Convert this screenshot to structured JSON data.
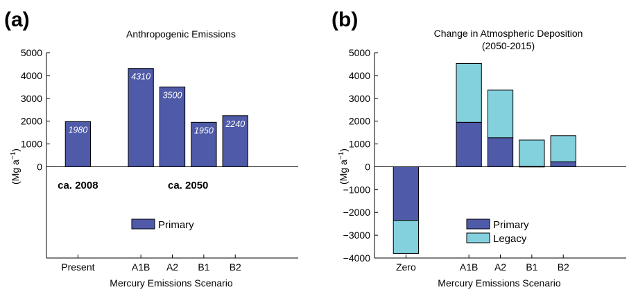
{
  "colors": {
    "primary": "#4f5aa8",
    "legacy": "#84d1de",
    "axis": "#000000"
  },
  "chart_data": [
    {
      "panel_label": "(a)",
      "type": "bar",
      "title": "Anthropogenic Emissions",
      "subtitle": "",
      "xlabel": "Mercury Emissions Scenario",
      "ylabel": "(Mg a",
      "ylabel_sup": "−1",
      "ylabel_close": ")",
      "ylim": [
        -4000,
        5000
      ],
      "yticks": [
        0,
        1000,
        2000,
        3000,
        4000,
        5000
      ],
      "ytick_labels": [
        "0",
        "1000",
        "2000",
        "3000",
        "4000",
        "5000"
      ],
      "categories": [
        "Present",
        "A1B",
        "A2",
        "B1",
        "B2"
      ],
      "category_pos": [
        1,
        3,
        4,
        5,
        6
      ],
      "xlim": [
        0,
        8
      ],
      "series": [
        {
          "name": "Primary",
          "values": [
            1980,
            4310,
            3500,
            1950,
            2240
          ]
        }
      ],
      "data_labels": [
        "1980",
        "4310",
        "3500",
        "1950",
        "2240"
      ],
      "annotations": [
        {
          "text": "ca. 2008",
          "x": 1,
          "y": -800
        },
        {
          "text": "ca. 2050",
          "x": 4.5,
          "y": -800
        }
      ],
      "legend": [
        "Primary"
      ],
      "legend_placement": "lower-center",
      "grid": false
    },
    {
      "panel_label": "(b)",
      "type": "bar",
      "stacked": true,
      "title": "Change in Atmospheric Deposition",
      "subtitle": "(2050-2015)",
      "xlabel": "Mercury Emissions Scenario",
      "ylabel": "(Mg a",
      "ylabel_sup": "−1",
      "ylabel_close": ")",
      "ylim": [
        -4000,
        5000
      ],
      "yticks": [
        -4000,
        -3000,
        -2000,
        -1000,
        0,
        1000,
        2000,
        3000,
        4000,
        5000
      ],
      "ytick_labels": [
        "−4000",
        "−3000",
        "−2000",
        "−1000",
        "0",
        "1000",
        "2000",
        "3000",
        "4000",
        "5000"
      ],
      "categories": [
        "Zero",
        "A1B",
        "A2",
        "B1",
        "B2"
      ],
      "category_pos": [
        1,
        3,
        4,
        5,
        6
      ],
      "xlim": [
        0,
        8
      ],
      "series": [
        {
          "name": "Primary",
          "values": [
            -2350,
            1950,
            1270,
            20,
            220
          ]
        },
        {
          "name": "Legacy",
          "values": [
            -1450,
            2580,
            2090,
            1150,
            1140
          ]
        }
      ],
      "legend": [
        "Primary",
        "Legacy"
      ],
      "legend_placement": "lower-center",
      "grid": false
    }
  ]
}
